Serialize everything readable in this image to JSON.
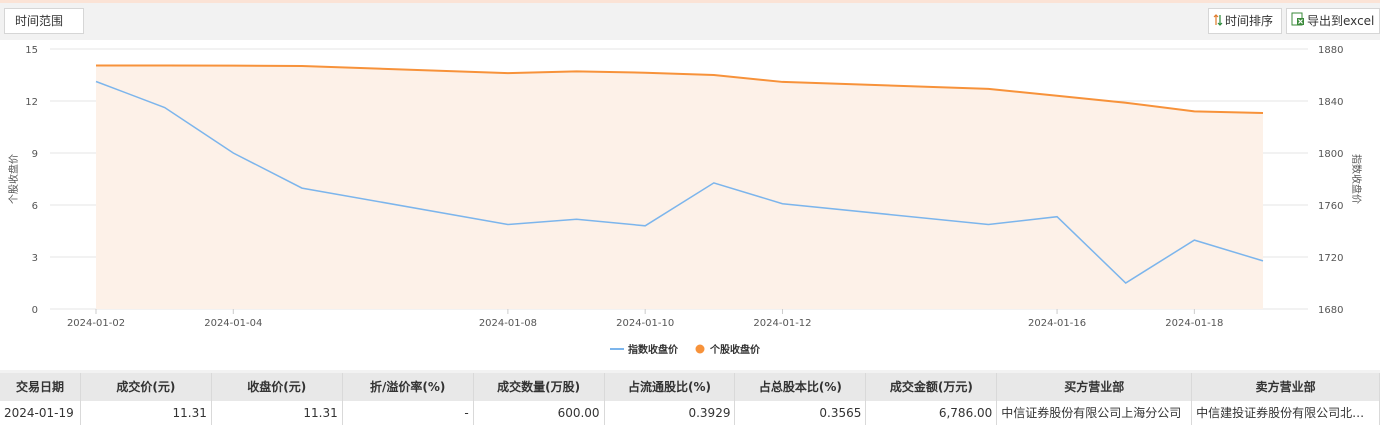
{
  "toolbar": {
    "time_range_label": "时间范围",
    "sort_label": "时间排序",
    "export_label": "导出到excel"
  },
  "colors": {
    "index_line": "#7cb5ec",
    "stock_line": "#f7923a",
    "stock_fill": "#fdf1e8"
  },
  "chart_data": {
    "type": "line",
    "x_ticks": [
      "2024-01-02",
      "2024-01-04",
      "2024-01-08",
      "2024-01-10",
      "2024-01-12",
      "2024-01-16",
      "2024-01-18"
    ],
    "x": [
      "2024-01-02",
      "2024-01-03",
      "2024-01-04",
      "2024-01-05",
      "2024-01-08",
      "2024-01-09",
      "2024-01-10",
      "2024-01-11",
      "2024-01-12",
      "2024-01-15",
      "2024-01-16",
      "2024-01-17",
      "2024-01-18",
      "2024-01-19"
    ],
    "series": [
      {
        "name": "指数收盘价",
        "axis": "right",
        "values": [
          1855,
          1835,
          1800,
          1773,
          1745,
          1749,
          1744,
          1777,
          1761,
          1745,
          1751,
          1700,
          1733,
          1717
        ]
      },
      {
        "name": "个股收盘价",
        "axis": "left",
        "values": [
          14.05,
          14.05,
          14.04,
          14.02,
          13.61,
          13.71,
          13.63,
          13.5,
          13.1,
          12.7,
          12.3,
          11.9,
          11.4,
          11.31
        ]
      }
    ],
    "left_axis": {
      "label": "个股收盘价",
      "ticks": [
        "15",
        "12",
        "9",
        "6",
        "3",
        "0"
      ],
      "ylim": [
        0,
        15
      ]
    },
    "right_axis": {
      "label": "指数收盘价",
      "ticks": [
        "1880",
        "1840",
        "1800",
        "1760",
        "1720",
        "1680"
      ],
      "ylim": [
        1680,
        1880
      ]
    },
    "legend_position": "bottom-center",
    "grid": true
  },
  "table": {
    "headers": [
      "交易日期",
      "成交价(元)",
      "收盘价(元)",
      "折/溢价率(%)",
      "成交数量(万股)",
      "占流通股比(%)",
      "占总股本比(%)",
      "成交金额(万元)",
      "买方营业部",
      "卖方营业部"
    ],
    "rows": [
      [
        "2024-01-19",
        "11.31",
        "11.31",
        "-",
        "600.00",
        "0.3929",
        "0.3565",
        "6,786.00",
        "中信证券股份有限公司上海分公司",
        "中信建投证券股份有限公司北京..."
      ]
    ]
  }
}
